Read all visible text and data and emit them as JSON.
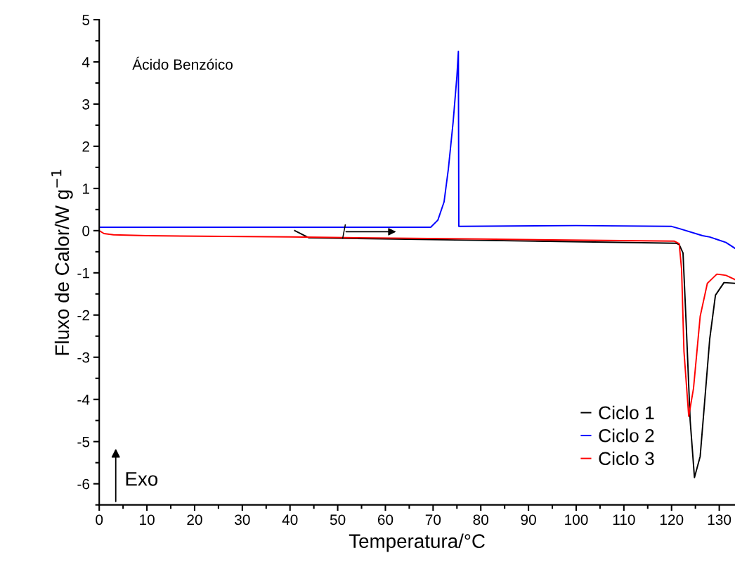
{
  "chart_data": {
    "type": "line",
    "xlabel": "Temperatura/°C",
    "ylabel": "Fluxo de Calor/W g$^{−1}$",
    "xlim": [
      0,
      133.3
    ],
    "ylim": [
      -6.5,
      5
    ],
    "xticks": [
      0,
      10,
      20,
      30,
      40,
      50,
      60,
      70,
      80,
      90,
      100,
      110,
      120,
      130
    ],
    "yticks": [
      -6,
      -5,
      -4,
      -3,
      -2,
      -1,
      0,
      1,
      2,
      3,
      4,
      5
    ],
    "legend": "bottom right",
    "grid": false,
    "marker": "none",
    "line_style": "solid",
    "annotations": [
      "Ácido Benzóico",
      "Exo"
    ],
    "series": [
      {
        "name": "Ciclo 1",
        "color": "#000000",
        "x": [
          41,
          44,
          80,
          121,
          121.6,
          122.4,
          123.1,
          123.9,
          124.8,
          126,
          127,
          128,
          129.2,
          131,
          133.3
        ],
        "values": [
          0,
          -0.17,
          -0.23,
          -0.3,
          -0.33,
          -0.53,
          -2.3,
          -4.5,
          -5.85,
          -5.35,
          -3.97,
          -2.57,
          -1.53,
          -1.23,
          -1.25
        ]
      },
      {
        "name": "Ciclo 2",
        "color": "#0000ff",
        "x": [
          0,
          40,
          68,
          69.5,
          71,
          72.3,
          73.2,
          74.2,
          75,
          75.3,
          75.4,
          100,
          120,
          121.6,
          126.5,
          128,
          131.4,
          133.3
        ],
        "values": [
          0.08,
          0.08,
          0.08,
          0.08,
          0.25,
          0.68,
          1.46,
          2.57,
          3.67,
          4.25,
          0.1,
          0.12,
          0.1,
          0.05,
          -0.12,
          -0.15,
          -0.28,
          -0.42
        ]
      },
      {
        "name": "Ciclo 3",
        "color": "#ff0000",
        "x": [
          0,
          1,
          3,
          10,
          40,
          80,
          120.6,
          121.6,
          122.1,
          122.6,
          123.6,
          124.6,
          126,
          127.5,
          129.5,
          131.4,
          133.3
        ],
        "values": [
          0,
          -0.07,
          -0.1,
          -0.12,
          -0.15,
          -0.2,
          -0.25,
          -0.31,
          -0.91,
          -2.86,
          -4.4,
          -3.74,
          -2.03,
          -1.25,
          -1.03,
          -1.06,
          -1.16
        ]
      }
    ]
  }
}
